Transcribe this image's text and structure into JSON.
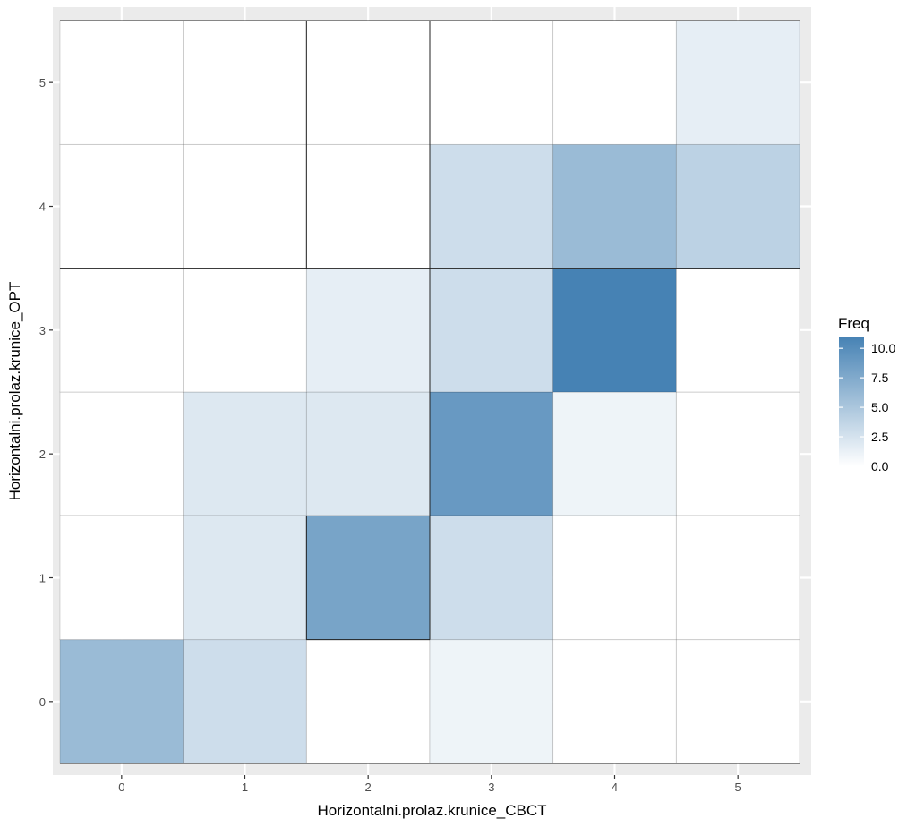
{
  "chart_data": {
    "type": "heatmap",
    "title": "",
    "xlabel": "Horizontalni.prolaz.krunice_CBCT",
    "ylabel": "Horizontalni.prolaz.krunice_OPT",
    "x_categories": [
      "0",
      "1",
      "2",
      "3",
      "4",
      "5"
    ],
    "y_categories": [
      "0",
      "1",
      "2",
      "3",
      "4",
      "5"
    ],
    "legend": {
      "title": "Freq",
      "placement": "right",
      "breaks": [
        0,
        2.5,
        5,
        7.5,
        10
      ],
      "break_labels": [
        "0.0",
        "2.5",
        "5.0",
        "7.5",
        "10.0"
      ],
      "min": 0,
      "max": 11,
      "low_color": "#ffffff",
      "high_color": "#4682b4"
    },
    "cells": [
      {
        "x": "0",
        "y": "0",
        "freq": 6
      },
      {
        "x": "1",
        "y": "0",
        "freq": 3
      },
      {
        "x": "2",
        "y": "0",
        "freq": 0
      },
      {
        "x": "3",
        "y": "0",
        "freq": 1
      },
      {
        "x": "4",
        "y": "0",
        "freq": 0
      },
      {
        "x": "5",
        "y": "0",
        "freq": 0
      },
      {
        "x": "0",
        "y": "1",
        "freq": 0
      },
      {
        "x": "1",
        "y": "1",
        "freq": 2
      },
      {
        "x": "2",
        "y": "1",
        "freq": 8
      },
      {
        "x": "3",
        "y": "1",
        "freq": 3
      },
      {
        "x": "4",
        "y": "1",
        "freq": 0
      },
      {
        "x": "5",
        "y": "1",
        "freq": 0
      },
      {
        "x": "0",
        "y": "2",
        "freq": 0
      },
      {
        "x": "1",
        "y": "2",
        "freq": 2
      },
      {
        "x": "2",
        "y": "2",
        "freq": 2
      },
      {
        "x": "3",
        "y": "2",
        "freq": 9
      },
      {
        "x": "4",
        "y": "2",
        "freq": 1
      },
      {
        "x": "5",
        "y": "2",
        "freq": 0
      },
      {
        "x": "0",
        "y": "3",
        "freq": 0
      },
      {
        "x": "1",
        "y": "3",
        "freq": 0
      },
      {
        "x": "2",
        "y": "3",
        "freq": 1.5
      },
      {
        "x": "3",
        "y": "3",
        "freq": 3
      },
      {
        "x": "4",
        "y": "3",
        "freq": 11
      },
      {
        "x": "5",
        "y": "3",
        "freq": 0
      },
      {
        "x": "0",
        "y": "4",
        "freq": 0
      },
      {
        "x": "1",
        "y": "4",
        "freq": 0
      },
      {
        "x": "2",
        "y": "4",
        "freq": 0
      },
      {
        "x": "3",
        "y": "4",
        "freq": 3
      },
      {
        "x": "4",
        "y": "4",
        "freq": 6
      },
      {
        "x": "5",
        "y": "4",
        "freq": 4
      },
      {
        "x": "0",
        "y": "5",
        "freq": 0
      },
      {
        "x": "1",
        "y": "5",
        "freq": 0
      },
      {
        "x": "2",
        "y": "5",
        "freq": 0
      },
      {
        "x": "3",
        "y": "5",
        "freq": 0
      },
      {
        "x": "4",
        "y": "5",
        "freq": 0
      },
      {
        "x": "5",
        "y": "5",
        "freq": 1.5
      }
    ],
    "grid": true,
    "panel_background": "#ebebeb",
    "grid_color": "#ffffff"
  }
}
